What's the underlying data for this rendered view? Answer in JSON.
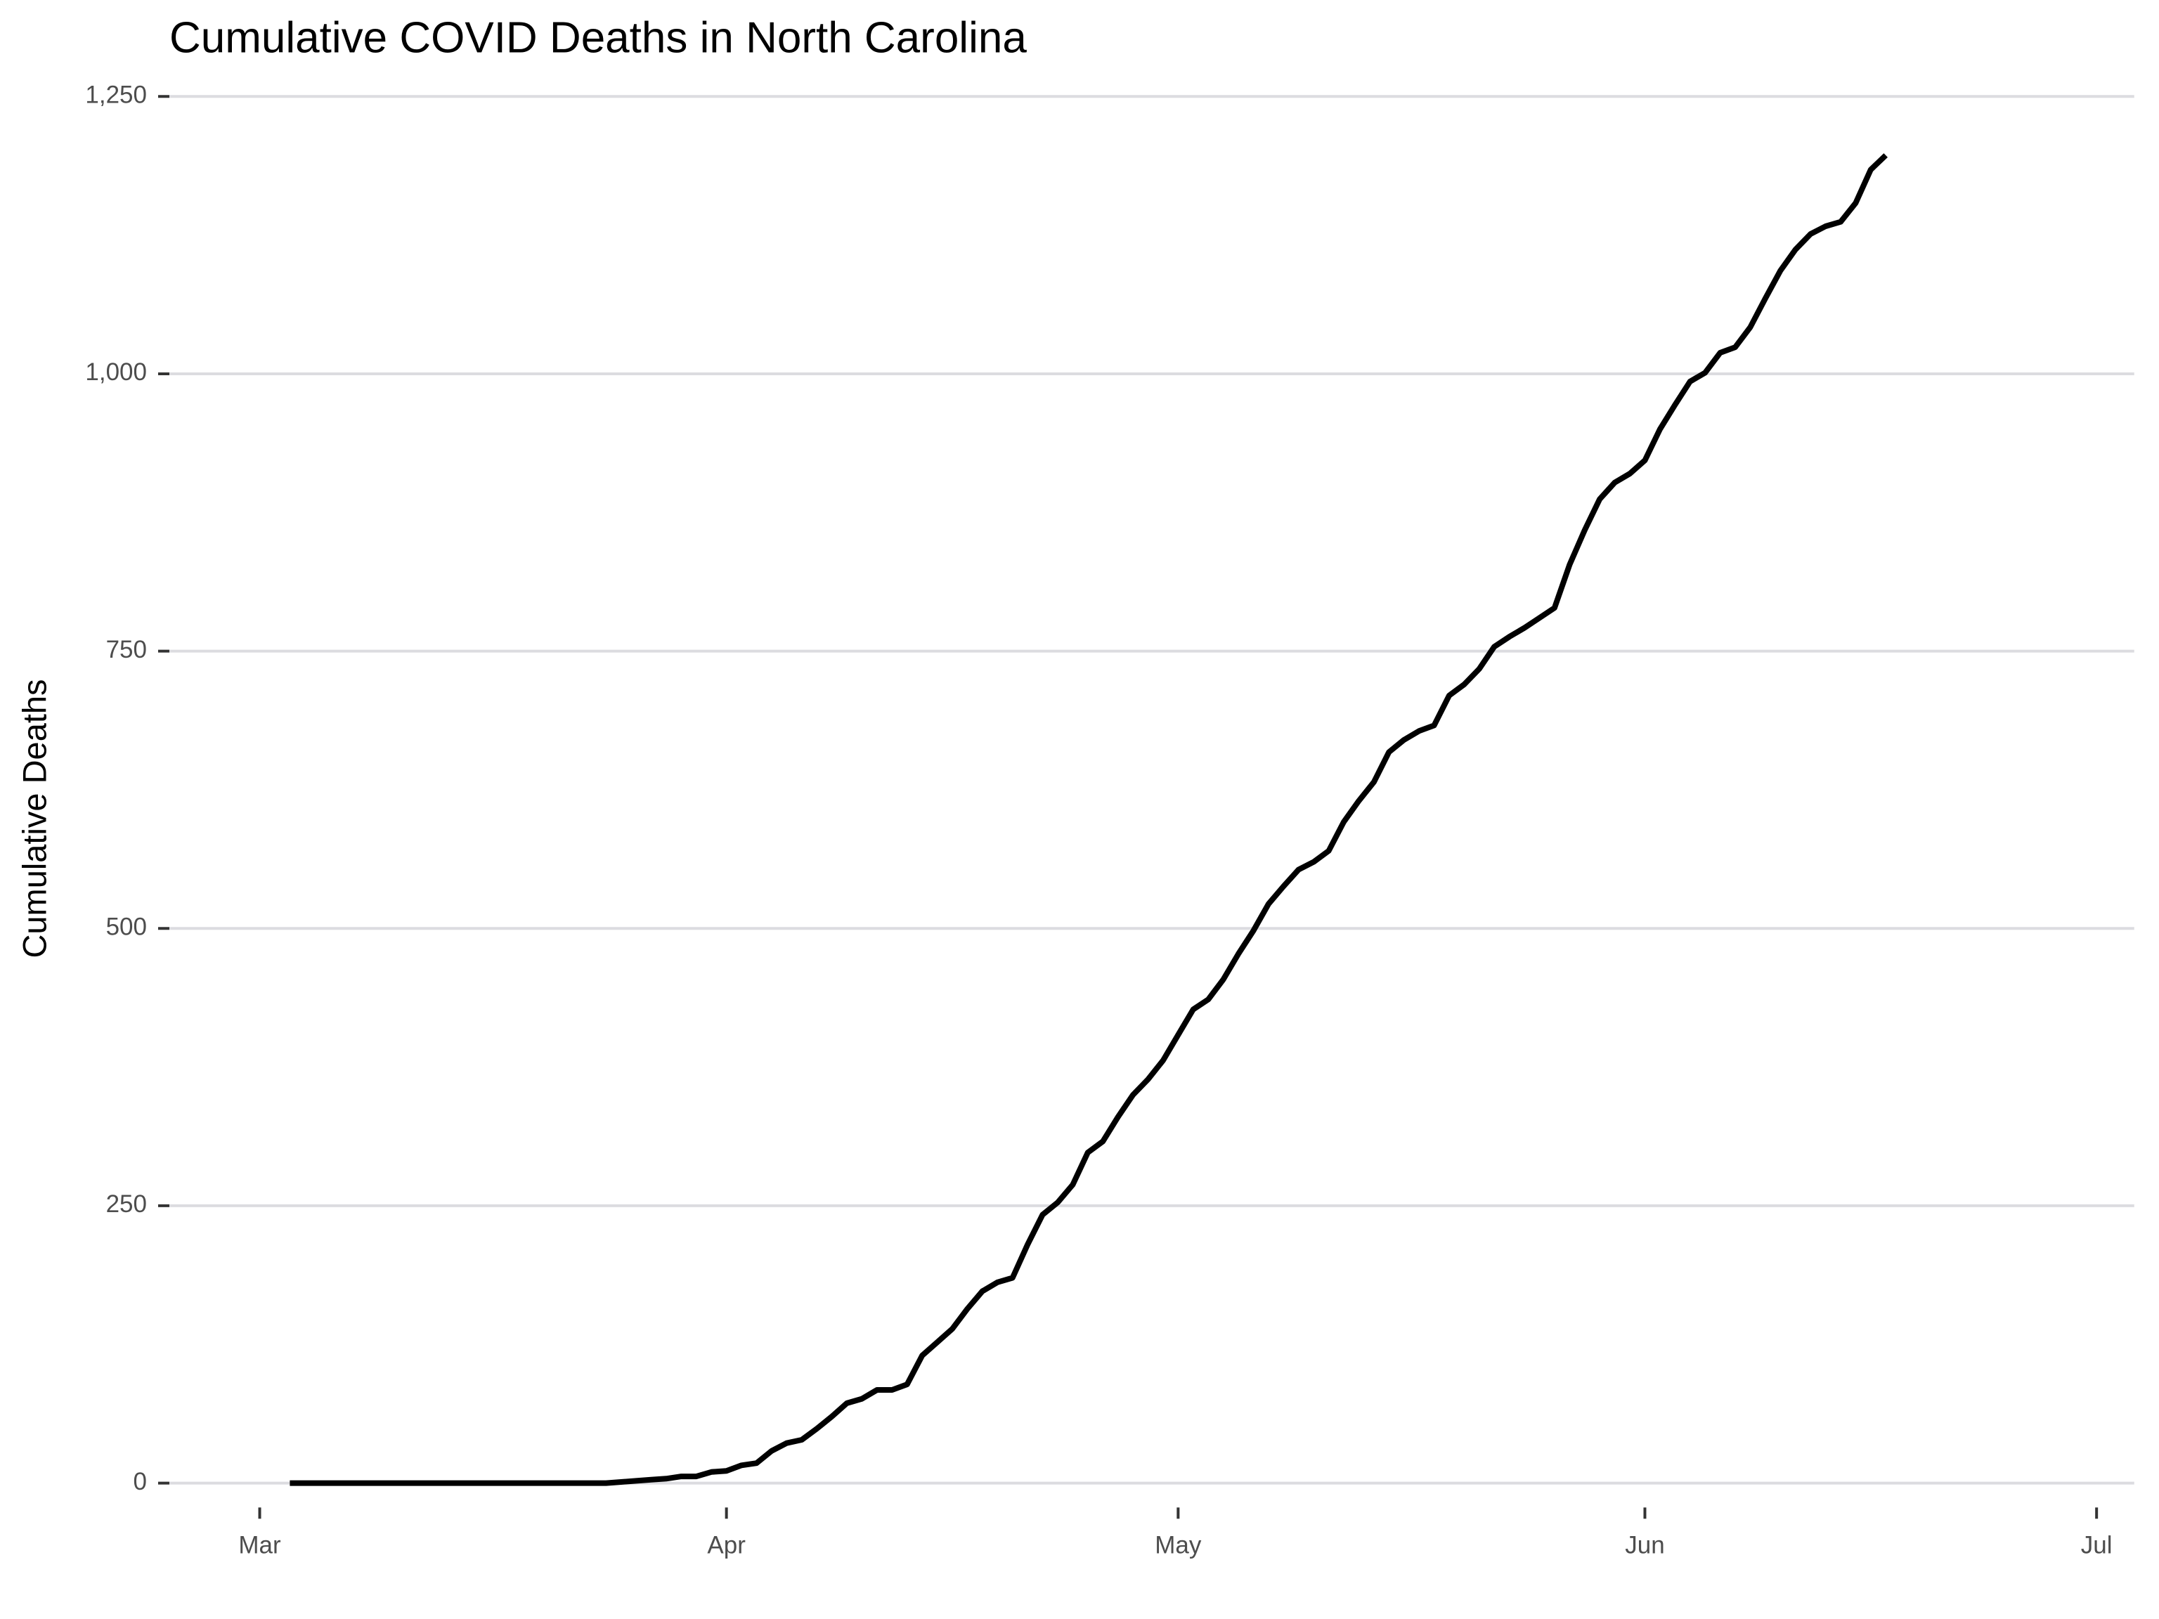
{
  "chart_data": {
    "type": "line",
    "title": "Cumulative COVID Deaths in North Carolina",
    "y_label": "Cumulative Deaths",
    "x": [
      2,
      3,
      4,
      5,
      6,
      7,
      8,
      9,
      10,
      11,
      12,
      13,
      14,
      15,
      16,
      17,
      18,
      19,
      20,
      21,
      22,
      23,
      24,
      25,
      26,
      27,
      28,
      29,
      30,
      31,
      32,
      33,
      34,
      35,
      36,
      37,
      38,
      39,
      40,
      41,
      42,
      43,
      44,
      45,
      46,
      47,
      48,
      49,
      50,
      51,
      52,
      53,
      54,
      55,
      56,
      57,
      58,
      59,
      60,
      61,
      62,
      63,
      64,
      65,
      66,
      67,
      68,
      69,
      70,
      71,
      72,
      73,
      74,
      75,
      76,
      77,
      78,
      79,
      80,
      81,
      82,
      83,
      84,
      85,
      86,
      87,
      88,
      89,
      90,
      91,
      92,
      93,
      94,
      95,
      96,
      97,
      98,
      99,
      100,
      101,
      102,
      103,
      104,
      105,
      106,
      107,
      108
    ],
    "values": [
      0,
      0,
      0,
      0,
      0,
      0,
      0,
      0,
      0,
      0,
      0,
      0,
      0,
      0,
      0,
      0,
      0,
      0,
      0,
      0,
      0,
      0,
      1,
      2,
      3,
      4,
      6,
      6,
      10,
      11,
      16,
      18,
      29,
      36,
      39,
      49,
      60,
      72,
      76,
      84,
      84,
      89,
      115,
      127,
      139,
      157,
      173,
      181,
      185,
      215,
      242,
      253,
      269,
      298,
      308,
      330,
      350,
      364,
      381,
      404,
      427,
      436,
      454,
      477,
      498,
      522,
      538,
      553,
      560,
      570,
      596,
      615,
      632,
      659,
      670,
      678,
      683,
      710,
      720,
      734,
      754,
      763,
      771,
      780,
      789,
      828,
      859,
      887,
      902,
      910,
      922,
      950,
      972,
      993,
      1001,
      1019,
      1024,
      1042,
      1068,
      1093,
      1112,
      1126,
      1133,
      1137,
      1154,
      1184,
      1197
    ],
    "color": "#000000",
    "xlim": [
      -6,
      124.5
    ],
    "xticks": [
      {
        "value": 0,
        "label": "Mar"
      },
      {
        "value": 31,
        "label": "Apr"
      },
      {
        "value": 61,
        "label": "May"
      },
      {
        "value": 92,
        "label": "Jun"
      },
      {
        "value": 122,
        "label": "Jul"
      }
    ],
    "ylim": [
      -22,
      1265
    ],
    "yticks": [
      0,
      250,
      500,
      750,
      {
        "value": 1000,
        "label": "1,000"
      },
      {
        "value": 1250,
        "label": "1,250"
      }
    ],
    "grid": true
  }
}
